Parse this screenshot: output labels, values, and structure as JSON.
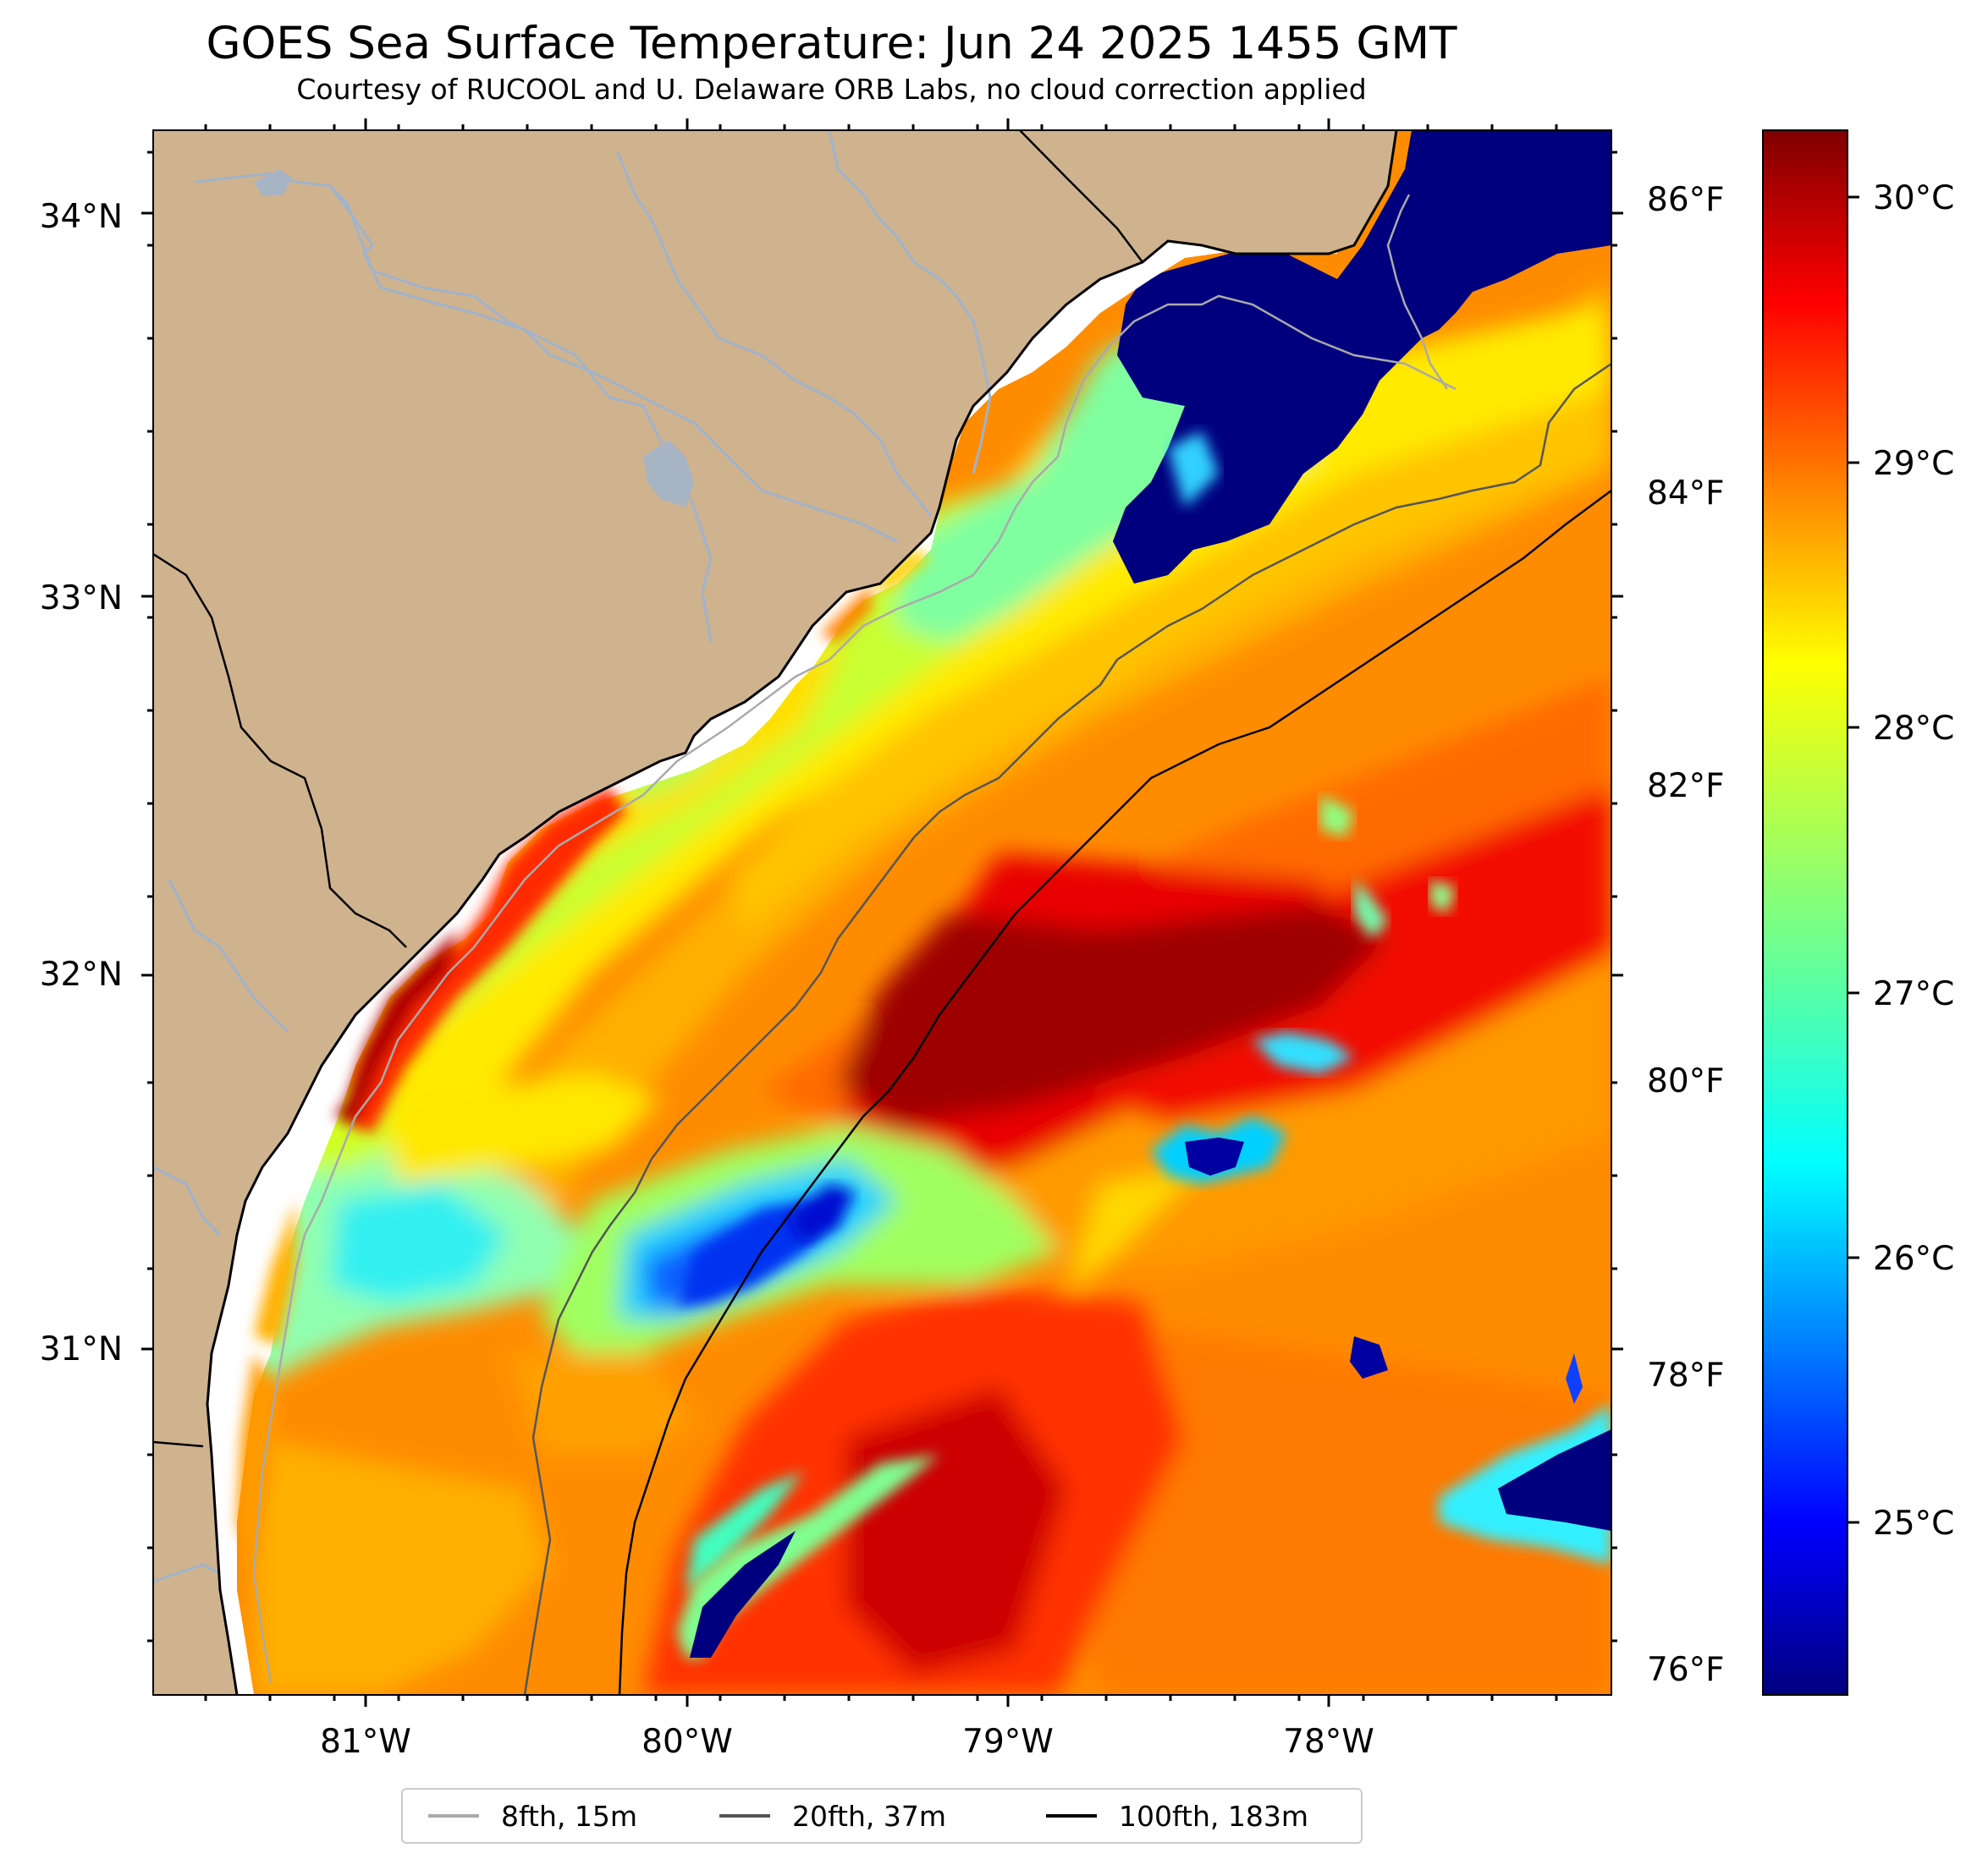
{
  "title": "GOES Sea Surface Temperature: Jun 24 2025 1455 GMT",
  "subtitle": "Courtesy of RUCOOL and U. Delaware ORB Labs, no cloud correction applied",
  "colors": {
    "land": "#cfb38f",
    "coast": "#000000",
    "river": "#9fb3cc",
    "nodata": "#ffffff",
    "cold_cloud": "#000080",
    "iso_8fth": "#aaaaaa",
    "iso_20fth": "#555555",
    "iso_100fth": "#000000"
  },
  "map": {
    "lon_range": [
      -81.67,
      -77.12
    ],
    "lat_range": [
      30.2,
      34.22
    ],
    "lat_ticks": [
      "34°N",
      "33°N",
      "32°N",
      "31°N"
    ],
    "lon_ticks": [
      "81°W",
      "80°W",
      "79°W",
      "78°W"
    ]
  },
  "fahrenheit_ticks": [
    "86°F",
    "84°F",
    "82°F",
    "80°F",
    "78°F",
    "76°F"
  ],
  "colorbar": {
    "colormap": "jet",
    "range_c": [
      24.5,
      30.3
    ],
    "labels": [
      "30°C",
      "29°C",
      "28°C",
      "27°C",
      "26°C",
      "25°C"
    ]
  },
  "legend": {
    "items": [
      {
        "label": "8fth, 15m",
        "color": "#aaaaaa"
      },
      {
        "label": "20fth, 37m",
        "color": "#555555"
      },
      {
        "label": "100fth, 183m",
        "color": "#000000"
      }
    ]
  }
}
